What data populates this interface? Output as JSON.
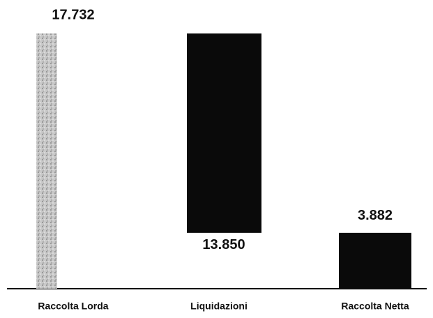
{
  "chart_data": {
    "type": "waterfall",
    "categories": [
      "Raccolta Lorda",
      "Liquidazioni",
      "Raccolta Netta"
    ],
    "values": [
      17732,
      13850,
      3882
    ],
    "value_labels": [
      "17.732",
      "13.850",
      "3.882"
    ],
    "colors": [
      "#b8b8b8",
      "#0a0a0a",
      "#0a0a0a"
    ]
  }
}
